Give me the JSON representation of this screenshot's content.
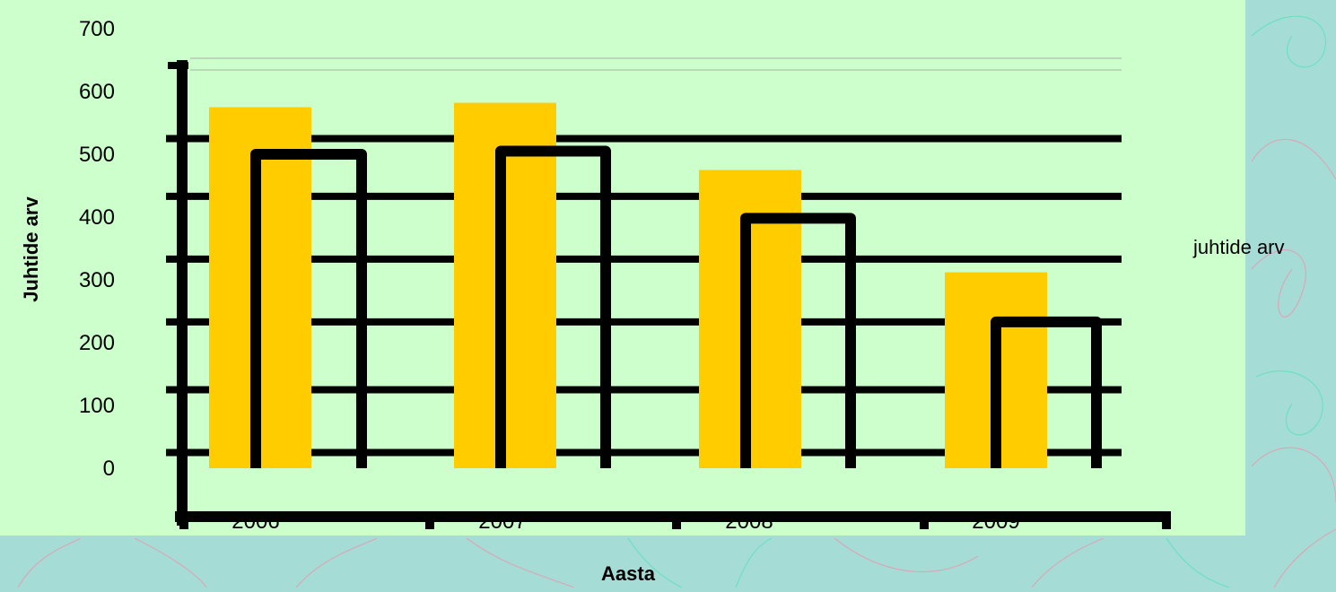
{
  "colors": {
    "background": "#a6dcd6",
    "plot_area": "#ccffcc",
    "bar_fill": "#ffcc00",
    "frame_stroke": "#000000",
    "decoration_stroke": "#d9a8b8"
  },
  "chart_data": {
    "type": "bar",
    "title": "",
    "xlabel": "Aasta",
    "ylabel": "Juhtide arv",
    "ylim": [
      0,
      700
    ],
    "ytick_labels": [
      "0",
      "100",
      "200",
      "300",
      "400",
      "500",
      "600",
      "700"
    ],
    "categories": [
      "2006",
      "2007",
      "2008",
      "2009"
    ],
    "series": [
      {
        "name": "juhtide arv",
        "values": [
          575,
          582,
          475,
          312
        ]
      }
    ],
    "outline_heights": [
      500,
      505,
      398,
      233
    ],
    "grid_values": [
      25,
      125,
      233,
      333,
      433,
      525
    ],
    "grid": true,
    "legend_position": "right"
  }
}
